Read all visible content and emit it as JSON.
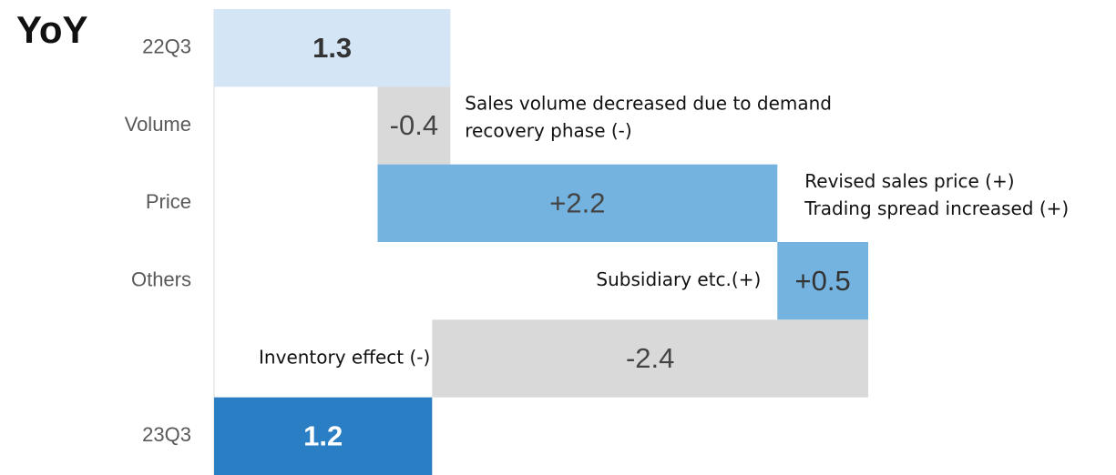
{
  "chart_data": {
    "type": "waterfall",
    "title": "YoY",
    "orientation": "horizontal",
    "categories": [
      "22Q3",
      "Volume",
      "Price",
      "Others",
      null,
      "23Q3"
    ],
    "values": [
      1.3,
      -0.4,
      2.2,
      0.5,
      -2.4,
      1.2
    ],
    "value_labels": [
      "1.3",
      "-0.4",
      "+2.2",
      "+0.5",
      "-2.4",
      "1.2"
    ],
    "measure": [
      "total",
      "relative",
      "relative",
      "relative",
      "relative",
      "total"
    ],
    "colors": [
      "#d4e6f5",
      "#d9d9d9",
      "#74b3e0",
      "#74b3e0",
      "#d9d9d9",
      "#2a7fc4"
    ],
    "label_colors": [
      "#333333",
      "#444444",
      "#444444",
      "#333333",
      "#444444",
      "#ffffff"
    ],
    "xlim": [
      0,
      3.6
    ],
    "annotations": [
      null,
      [
        "Sales volume decreased due to demand",
        "recovery phase (-)"
      ],
      [
        "Revised sales price (+)",
        "Trading spread increased (+)"
      ],
      [
        "Subsidiary etc.(+)"
      ],
      [
        "Inventory effect (-)"
      ],
      null
    ]
  }
}
